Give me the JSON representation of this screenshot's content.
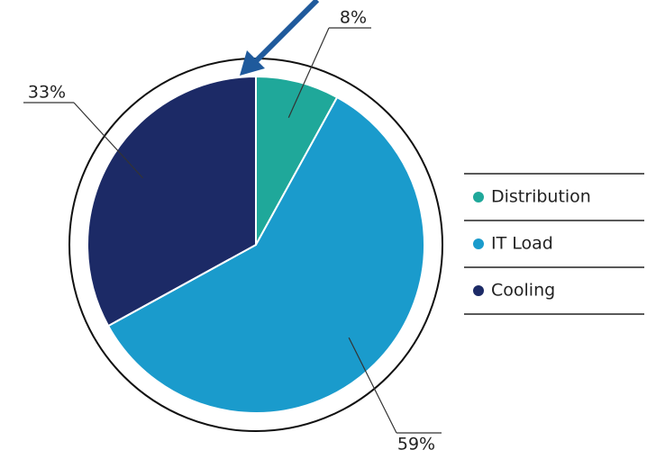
{
  "chart_data": {
    "type": "pie",
    "categories": [
      "Distribution",
      "IT Load",
      "Cooling"
    ],
    "values": [
      8,
      59,
      33
    ],
    "value_labels": [
      "8%",
      "59%",
      "33%"
    ],
    "colors": [
      "#1fa89a",
      "#1a9bcc",
      "#1c2a66"
    ]
  }
}
